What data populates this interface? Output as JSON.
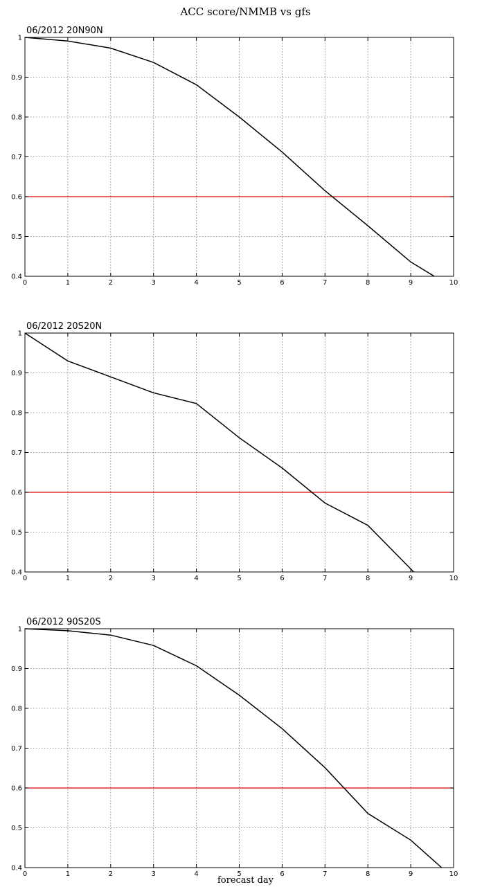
{
  "figure": {
    "title": "ACC score/NMMB vs gfs",
    "xlabel": "forecast day"
  },
  "colors": {
    "series": "#000000",
    "threshold": "#e00000",
    "grid": "#777777"
  },
  "chart_data": [
    {
      "type": "line",
      "title": "06/2012 20N90N",
      "xlim": [
        0,
        10
      ],
      "ylim": [
        0.4,
        1
      ],
      "xticks": [
        0,
        1,
        2,
        3,
        4,
        5,
        6,
        7,
        8,
        9,
        10
      ],
      "yticks": [
        0.4,
        0.5,
        0.6,
        0.7,
        0.8,
        0.9,
        1
      ],
      "grid": true,
      "threshold": 0.6,
      "x": [
        0,
        1,
        2,
        3,
        4,
        5,
        6,
        7,
        8,
        9,
        9.55
      ],
      "y": [
        1.0,
        0.991,
        0.973,
        0.937,
        0.881,
        0.8,
        0.712,
        0.615,
        0.527,
        0.436,
        0.4
      ]
    },
    {
      "type": "line",
      "title": "06/2012 20S20N",
      "xlim": [
        0,
        10
      ],
      "ylim": [
        0.4,
        1
      ],
      "xticks": [
        0,
        1,
        2,
        3,
        4,
        5,
        6,
        7,
        8,
        9,
        10
      ],
      "yticks": [
        0.4,
        0.5,
        0.6,
        0.7,
        0.8,
        0.9,
        1
      ],
      "grid": true,
      "threshold": 0.6,
      "x": [
        0,
        1,
        2,
        3,
        4,
        5,
        6,
        7,
        8,
        9.07
      ],
      "y": [
        1.0,
        0.93,
        0.89,
        0.85,
        0.823,
        0.737,
        0.661,
        0.573,
        0.517,
        0.4
      ]
    },
    {
      "type": "line",
      "title": "06/2012 90S20S",
      "xlim": [
        0,
        10
      ],
      "ylim": [
        0.4,
        1
      ],
      "xticks": [
        0,
        1,
        2,
        3,
        4,
        5,
        6,
        7,
        8,
        9,
        10
      ],
      "yticks": [
        0.4,
        0.5,
        0.6,
        0.7,
        0.8,
        0.9,
        1
      ],
      "grid": true,
      "threshold": 0.6,
      "x": [
        0,
        1,
        2,
        3,
        4,
        5,
        6,
        7,
        8,
        9,
        9.72
      ],
      "y": [
        1.0,
        0.995,
        0.984,
        0.958,
        0.907,
        0.833,
        0.749,
        0.651,
        0.536,
        0.469,
        0.4
      ]
    }
  ]
}
